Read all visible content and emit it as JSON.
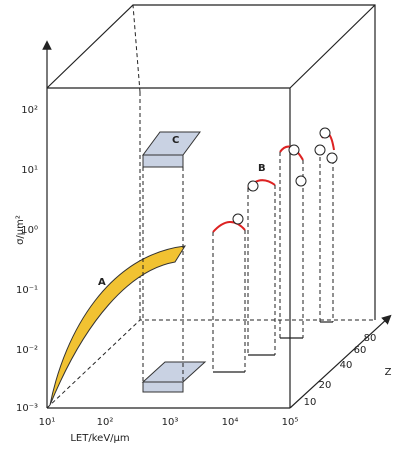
{
  "axes": {
    "y_title": "σ/μm²",
    "x_title": "LET/keV/μm",
    "z_title": "Z",
    "y_ticks": [
      "10²",
      "10¹",
      "10⁰",
      "10⁻¹",
      "10⁻²",
      "10⁻³"
    ],
    "x_ticks": [
      "10¹",
      "10²",
      "10³",
      "10⁴",
      "10⁵"
    ],
    "z_ticks": [
      "10",
      "20",
      "40",
      "60",
      "80"
    ]
  },
  "labels": {
    "a": "A",
    "b": "B",
    "c": "C"
  }
}
